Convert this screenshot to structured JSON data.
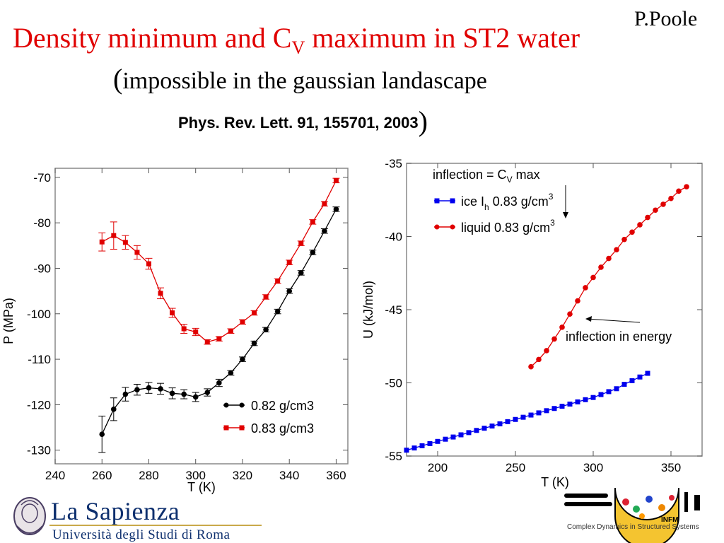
{
  "header": {
    "author": "P.Poole",
    "title_main": "Density minimum and C",
    "title_sub": "V",
    "title_rest": " maximum in ST2 water",
    "subtitle_paren": "(",
    "subtitle": "impossible in the gaussian landascape",
    "reference": "Phys. Rev. Lett. 91, 155701, 2003",
    "reference_paren": ")"
  },
  "logos": {
    "sapienza_name": "La Sapienza",
    "sapienza_university": "Università degli Studi di Roma",
    "smc_caption": "Complex Dynamics in Structured Systems",
    "smc_infm": "INFM"
  },
  "colors": {
    "title": "#e00000",
    "series_black": "#000000",
    "series_red": "#e00000",
    "series_blue": "#0000ee"
  },
  "chart_data": [
    {
      "type": "line",
      "xlabel": "T (K)",
      "ylabel": "P (MPa)",
      "xlim": [
        240,
        365
      ],
      "ylim": [
        -133,
        -68
      ],
      "xticks": [
        "240",
        "260",
        "280",
        "300",
        "320",
        "340",
        "360"
      ],
      "yticks": [
        "-70",
        "-80",
        "-90",
        "-100",
        "-110",
        "-120",
        "-130"
      ],
      "legend_placement": "bottom-right",
      "series": [
        {
          "name": "0.82 g/cm3",
          "color": "#000000",
          "marker": "circle",
          "x": [
            260,
            265,
            270,
            275,
            280,
            285,
            290,
            295,
            300,
            305,
            310,
            315,
            320,
            325,
            330,
            335,
            340,
            345,
            350,
            355,
            360
          ],
          "y": [
            -126.5,
            -121,
            -117.7,
            -116.7,
            -116.3,
            -116.5,
            -117.5,
            -117.7,
            -118.3,
            -117.3,
            -115.2,
            -113.0,
            -110.0,
            -106.5,
            -103.5,
            -99.5,
            -95.0,
            -91.0,
            -86.5,
            -81.8,
            -77.0
          ],
          "err": [
            4,
            2.5,
            1.5,
            1.2,
            1.2,
            1.2,
            1.2,
            1,
            1,
            0.8,
            0.8,
            0.5,
            0.5,
            0.5,
            0.5,
            0.5,
            0.5,
            0.5,
            0.5,
            0.5,
            0.5
          ]
        },
        {
          "name": "0.83 g/cm3",
          "color": "#e00000",
          "marker": "square",
          "x": [
            260,
            265,
            270,
            275,
            280,
            285,
            290,
            295,
            300,
            305,
            310,
            315,
            320,
            325,
            330,
            335,
            340,
            345,
            350,
            355,
            360
          ],
          "y": [
            -84.2,
            -82.8,
            -84.3,
            -86.5,
            -89.0,
            -95.5,
            -99.8,
            -103.3,
            -104.0,
            -106.2,
            -105.5,
            -103.8,
            -101.8,
            -99.8,
            -96.3,
            -92.8,
            -88.7,
            -84.5,
            -79.8,
            -75.8,
            -70.7
          ],
          "err": [
            2,
            3,
            1.5,
            1.5,
            1.2,
            1.2,
            1,
            1,
            0.8,
            0.5,
            0.5,
            0.5,
            0.5,
            0.5,
            0.5,
            0.5,
            0.5,
            0.5,
            0.5,
            0.5,
            0.5
          ]
        }
      ]
    },
    {
      "type": "line",
      "xlabel": "T (K)",
      "ylabel": "U (kJ/mol)",
      "xlim": [
        180,
        370
      ],
      "ylim": [
        -55,
        -35
      ],
      "xticks": [
        "200",
        "250",
        "300",
        "350"
      ],
      "yticks": [
        "-35",
        "-40",
        "-45",
        "-50",
        "-55"
      ],
      "legend_placement": "top-left",
      "annotations": {
        "top_label_main": "inflection = C",
        "top_label_sub": "V",
        "top_label_rest": " max",
        "arrow_label": "inflection in energy"
      },
      "series": [
        {
          "name_main": "ice I",
          "name_sub": "h",
          "name_rest": " 0.83 g/cm",
          "name_sup": "3",
          "color": "#0000ee",
          "marker": "square",
          "x": [
            180,
            185,
            190,
            195,
            200,
            205,
            210,
            215,
            220,
            225,
            230,
            235,
            240,
            245,
            250,
            255,
            260,
            265,
            270,
            275,
            280,
            285,
            290,
            295,
            300,
            305,
            310,
            315,
            320,
            325,
            330,
            335
          ],
          "y": [
            -54.6,
            -54.45,
            -54.3,
            -54.15,
            -54.0,
            -53.85,
            -53.7,
            -53.55,
            -53.4,
            -53.25,
            -53.1,
            -52.95,
            -52.8,
            -52.65,
            -52.5,
            -52.35,
            -52.2,
            -52.05,
            -51.9,
            -51.75,
            -51.6,
            -51.45,
            -51.3,
            -51.15,
            -51.0,
            -50.8,
            -50.6,
            -50.4,
            -50.1,
            -49.85,
            -49.6,
            -49.35
          ]
        },
        {
          "name_main": "liquid 0.83 g/cm",
          "name_sup": "3",
          "color": "#e00000",
          "marker": "circle",
          "x": [
            260,
            265,
            270,
            275,
            280,
            285,
            290,
            295,
            300,
            305,
            310,
            315,
            320,
            325,
            330,
            335,
            340,
            345,
            350,
            355,
            360
          ],
          "y": [
            -48.9,
            -48.4,
            -47.8,
            -47.0,
            -46.2,
            -45.3,
            -44.4,
            -43.5,
            -42.8,
            -42.1,
            -41.5,
            -40.9,
            -40.2,
            -39.7,
            -39.2,
            -38.7,
            -38.2,
            -37.8,
            -37.4,
            -36.9,
            -36.6
          ]
        }
      ]
    }
  ]
}
